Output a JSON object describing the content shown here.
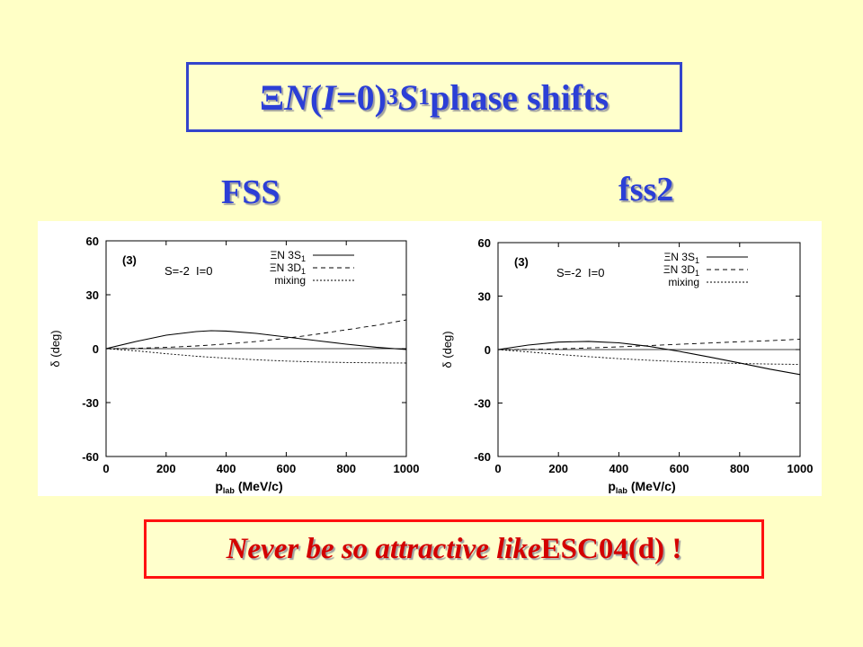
{
  "title": {
    "xi": "Ξ",
    "n": "N",
    "paren_open": " (",
    "i_label": "I",
    "eq_zero": "=0) ",
    "sup3": "3",
    "s": "S",
    "sub1": "1",
    "tail": " phase shifts"
  },
  "labels": {
    "left": "FSS",
    "right": "fss2"
  },
  "bottom": {
    "italic_part": "Never be so attractive like ",
    "plain_part": "ESC04(d) !"
  },
  "chart_data": [
    {
      "type": "line",
      "panel_label": "(3)",
      "annotation": "S=-2  I=0",
      "xlabel_main": "p",
      "xlabel_sub": "lab",
      "xlabel_unit": " (MeV/c)",
      "ylabel": "δ (deg)",
      "xlim": [
        0,
        1000
      ],
      "ylim": [
        -60,
        60
      ],
      "xticks": [
        0,
        200,
        400,
        600,
        800,
        1000
      ],
      "yticks": [
        60,
        30,
        0,
        -30,
        -60
      ],
      "legend_position": "top-right",
      "series": [
        {
          "name": "ΞN 3S",
          "name_sub": "1",
          "style": "solid",
          "x": [
            0,
            100,
            200,
            300,
            350,
            400,
            500,
            600,
            700,
            800,
            900,
            1000
          ],
          "values": [
            0,
            4,
            7.5,
            9.5,
            10,
            9.8,
            8.5,
            6.5,
            4.5,
            2.5,
            0.8,
            -0.5
          ]
        },
        {
          "name": "ΞN 3D",
          "name_sub": "1",
          "style": "dashed",
          "x": [
            0,
            100,
            200,
            300,
            400,
            500,
            600,
            700,
            800,
            900,
            1000
          ],
          "values": [
            0,
            0.2,
            0.7,
            1.5,
            2.6,
            4,
            5.8,
            8,
            10.5,
            13,
            16
          ]
        },
        {
          "name": "mixing",
          "name_sub": "",
          "style": "dotted",
          "x": [
            0,
            100,
            200,
            300,
            400,
            500,
            600,
            700,
            800,
            900,
            1000
          ],
          "values": [
            0,
            -1.2,
            -2.8,
            -4.2,
            -5.3,
            -6.2,
            -6.9,
            -7.4,
            -7.7,
            -7.9,
            -8
          ]
        }
      ]
    },
    {
      "type": "line",
      "panel_label": "(3)",
      "annotation": "S=-2  I=0",
      "xlabel_main": "p",
      "xlabel_sub": "lab",
      "xlabel_unit": " (MeV/c)",
      "ylabel": "δ (deg)",
      "xlim": [
        0,
        1000
      ],
      "ylim": [
        -60,
        60
      ],
      "xticks": [
        0,
        200,
        400,
        600,
        800,
        1000
      ],
      "yticks": [
        60,
        30,
        0,
        -30,
        -60
      ],
      "legend_position": "top-right",
      "series": [
        {
          "name": "ΞN 3S",
          "name_sub": "1",
          "style": "solid",
          "x": [
            0,
            100,
            200,
            300,
            400,
            500,
            600,
            700,
            800,
            900,
            1000
          ],
          "values": [
            0,
            2.5,
            4.2,
            4.6,
            3.8,
            1.8,
            -1,
            -4.2,
            -7.5,
            -11,
            -14
          ]
        },
        {
          "name": "ΞN 3D",
          "name_sub": "1",
          "style": "dashed",
          "x": [
            0,
            100,
            200,
            300,
            400,
            500,
            600,
            700,
            800,
            900,
            1000
          ],
          "values": [
            0,
            0.1,
            0.4,
            0.9,
            1.5,
            2.2,
            3,
            3.7,
            4.4,
            5,
            5.8
          ]
        },
        {
          "name": "mixing",
          "name_sub": "",
          "style": "dotted",
          "x": [
            0,
            100,
            200,
            300,
            400,
            500,
            600,
            700,
            800,
            900,
            1000
          ],
          "values": [
            0,
            -1.3,
            -2.7,
            -4,
            -5.1,
            -6,
            -6.8,
            -7.4,
            -7.8,
            -8.1,
            -8.3
          ]
        }
      ]
    }
  ]
}
